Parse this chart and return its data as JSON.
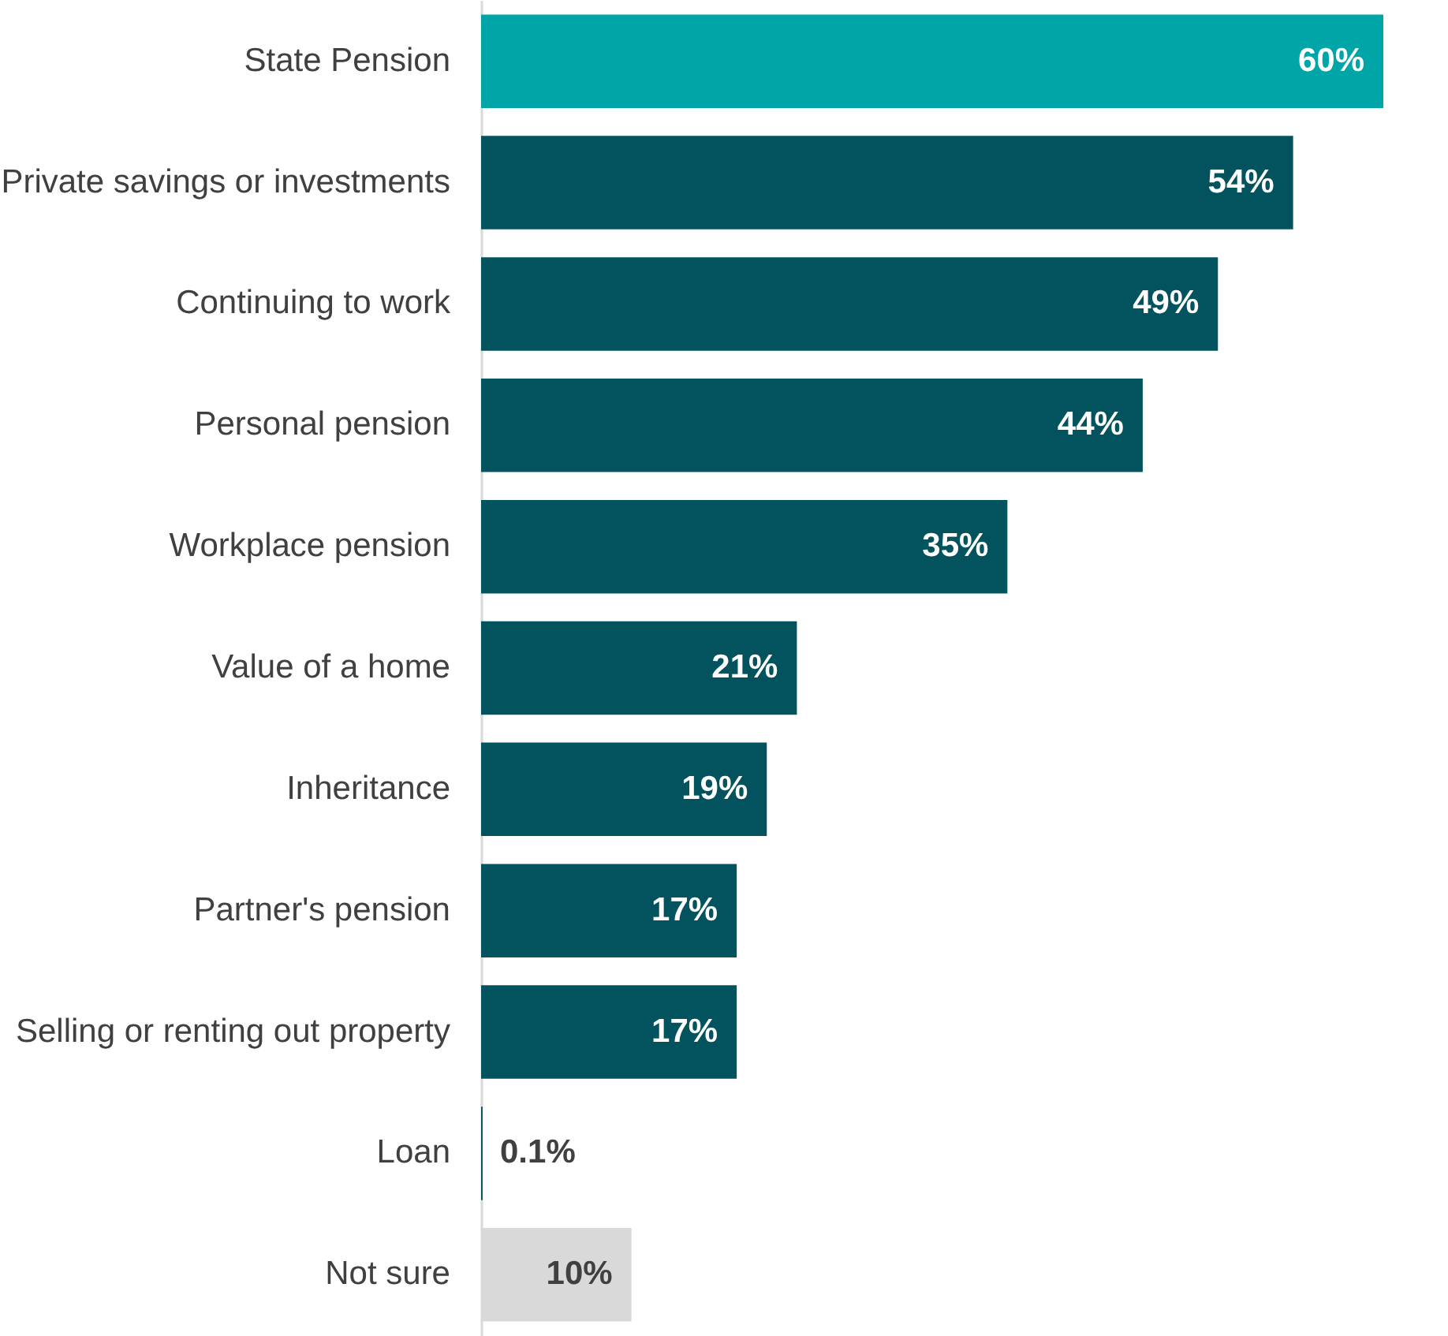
{
  "chart_data": {
    "type": "bar",
    "orientation": "horizontal",
    "categories": [
      "State Pension",
      "Private savings or investments",
      "Continuing to work",
      "Personal pension",
      "Workplace pension",
      "Value of a home",
      "Inheritance",
      "Partner's pension",
      "Selling or renting out property",
      "Loan",
      "Not sure"
    ],
    "values": [
      60,
      54,
      49,
      44,
      35,
      21,
      19,
      17,
      17,
      0.1,
      10
    ],
    "colors": [
      "#00a5a8",
      "#03535e",
      "#03535e",
      "#03535e",
      "#03535e",
      "#03535e",
      "#03535e",
      "#03535e",
      "#03535e",
      "#03535e",
      "#d9d9d9"
    ],
    "value_labels": [
      "60%",
      "54%",
      "49%",
      "44%",
      "35%",
      "21%",
      "19%",
      "17%",
      "17%",
      "0.1%",
      "10%"
    ]
  }
}
